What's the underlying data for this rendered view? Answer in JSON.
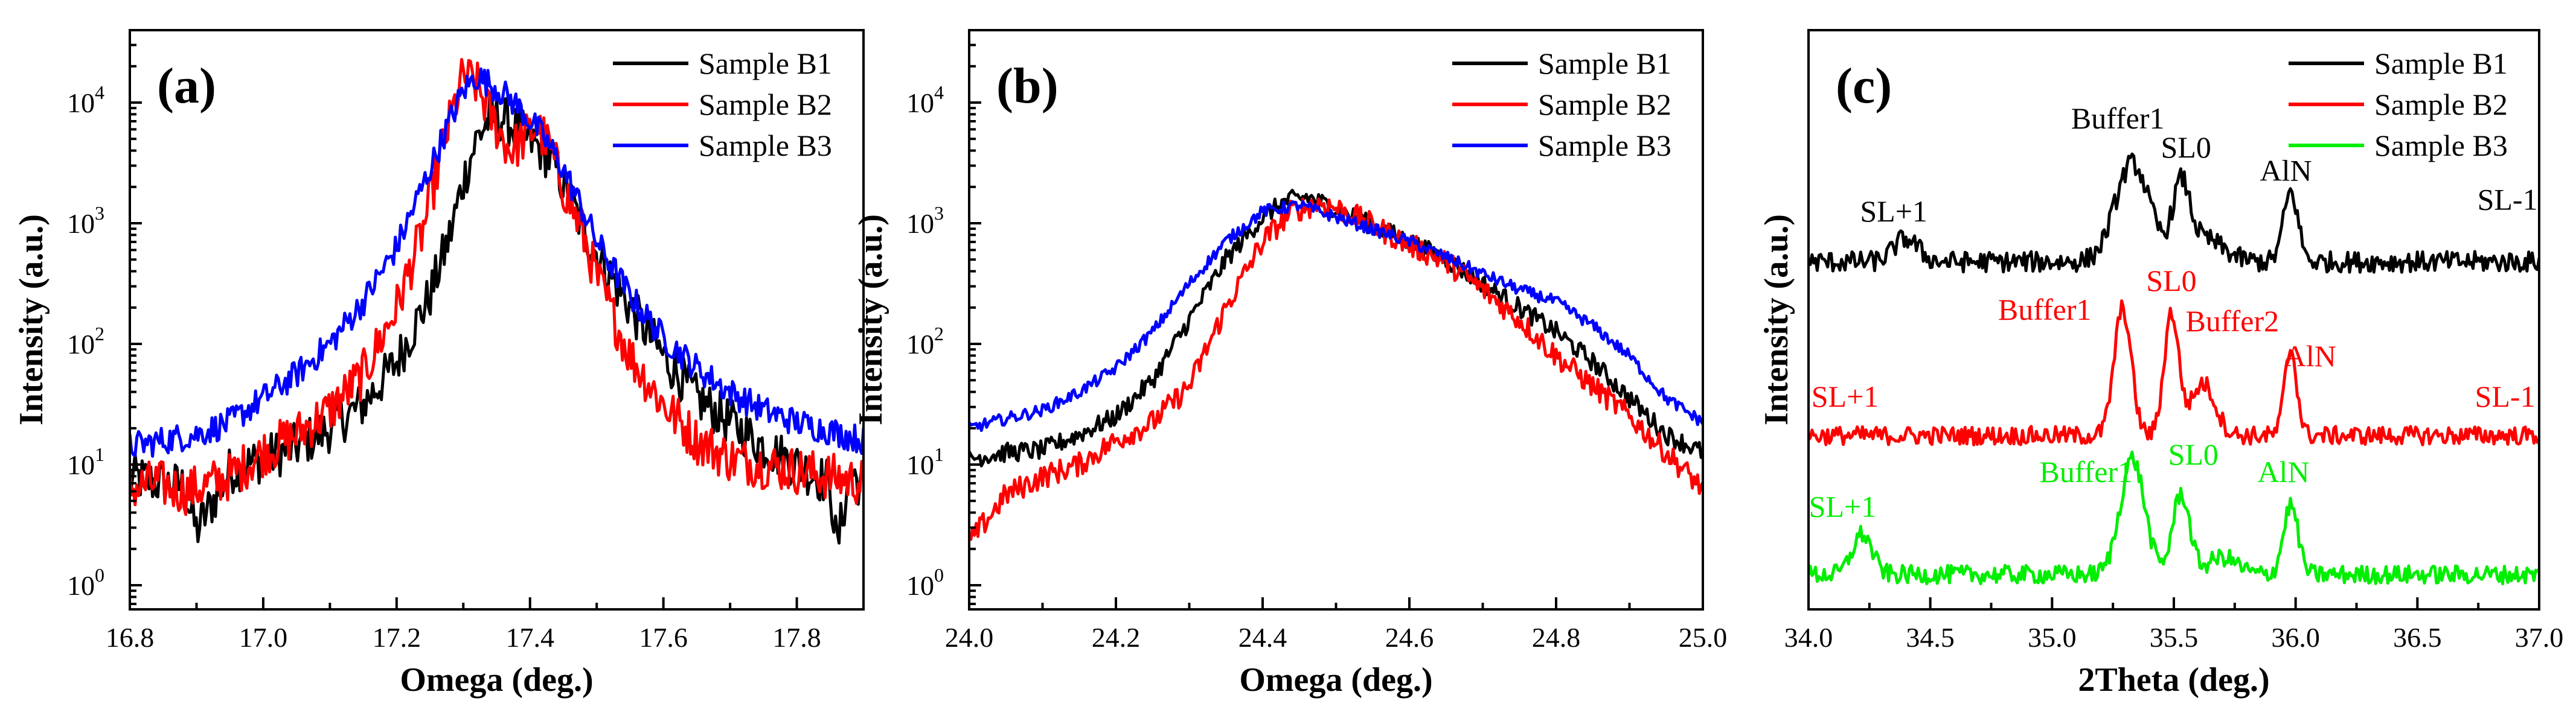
{
  "chart_data": [
    {
      "type": "line",
      "panel_label": "(a)",
      "xlabel": "Omega (deg.)",
      "ylabel": "Intensity (a.u.)",
      "xlim": [
        16.8,
        17.9
      ],
      "yscale": "log",
      "ylim_exponent": [
        -0.2,
        4.6
      ],
      "xticks": [
        "16.8",
        "17.0",
        "17.2",
        "17.4",
        "17.6",
        "17.8"
      ],
      "xtick_values": [
        16.8,
        17.0,
        17.2,
        17.4,
        17.6,
        17.8
      ],
      "ytick_exponents": [
        0,
        1,
        2,
        3,
        4
      ],
      "ytick_base": "10",
      "ytick_labels": [
        "0",
        "1",
        "2",
        "3",
        "4"
      ],
      "legend_position": "top-right",
      "series": [
        {
          "name": "Sample B1",
          "color": "#000000",
          "noise": 0.2,
          "points": [
            [
              16.8,
              0.9
            ],
            [
              16.84,
              0.85
            ],
            [
              16.88,
              0.82
            ],
            [
              16.9,
              0.45
            ],
            [
              16.95,
              0.95
            ],
            [
              17.0,
              1.05
            ],
            [
              17.05,
              1.15
            ],
            [
              17.1,
              1.3
            ],
            [
              17.15,
              1.5
            ],
            [
              17.2,
              1.85
            ],
            [
              17.25,
              2.4
            ],
            [
              17.28,
              2.9
            ],
            [
              17.3,
              3.35
            ],
            [
              17.32,
              3.7
            ],
            [
              17.34,
              3.88
            ],
            [
              17.36,
              3.87
            ],
            [
              17.38,
              3.78
            ],
            [
              17.4,
              3.68
            ],
            [
              17.42,
              3.6
            ],
            [
              17.44,
              3.45
            ],
            [
              17.46,
              3.2
            ],
            [
              17.48,
              2.95
            ],
            [
              17.5,
              2.75
            ],
            [
              17.55,
              2.3
            ],
            [
              17.6,
              1.9
            ],
            [
              17.65,
              1.55
            ],
            [
              17.7,
              1.35
            ],
            [
              17.75,
              1.15
            ],
            [
              17.8,
              1.0
            ],
            [
              17.83,
              0.9
            ],
            [
              17.85,
              0.85
            ],
            [
              17.86,
              0.3
            ],
            [
              17.88,
              0.95
            ],
            [
              17.9,
              0.8
            ]
          ]
        },
        {
          "name": "Sample B2",
          "color": "#ff0000",
          "noise": 0.2,
          "points": [
            [
              16.8,
              0.8
            ],
            [
              16.84,
              0.85
            ],
            [
              16.88,
              0.78
            ],
            [
              16.9,
              0.8
            ],
            [
              16.95,
              0.9
            ],
            [
              17.0,
              1.1
            ],
            [
              17.05,
              1.25
            ],
            [
              17.1,
              1.45
            ],
            [
              17.15,
              1.75
            ],
            [
              17.2,
              2.3
            ],
            [
              17.24,
              2.95
            ],
            [
              17.27,
              3.65
            ],
            [
              17.3,
              4.22
            ],
            [
              17.32,
              4.15
            ],
            [
              17.34,
              3.9
            ],
            [
              17.37,
              3.6
            ],
            [
              17.39,
              3.7
            ],
            [
              17.41,
              3.8
            ],
            [
              17.43,
              3.62
            ],
            [
              17.45,
              3.3
            ],
            [
              17.48,
              2.9
            ],
            [
              17.5,
              2.55
            ],
            [
              17.55,
              1.9
            ],
            [
              17.6,
              1.5
            ],
            [
              17.65,
              1.2
            ],
            [
              17.7,
              1.05
            ],
            [
              17.75,
              1.0
            ],
            [
              17.8,
              0.95
            ],
            [
              17.85,
              0.9
            ],
            [
              17.9,
              0.85
            ]
          ]
        },
        {
          "name": "Sample B3",
          "color": "#0000ff",
          "noise": 0.12,
          "points": [
            [
              16.8,
              1.15
            ],
            [
              16.85,
              1.2
            ],
            [
              16.9,
              1.25
            ],
            [
              16.95,
              1.35
            ],
            [
              17.0,
              1.55
            ],
            [
              17.05,
              1.75
            ],
            [
              17.1,
              2.0
            ],
            [
              17.15,
              2.35
            ],
            [
              17.2,
              2.8
            ],
            [
              17.25,
              3.45
            ],
            [
              17.28,
              3.85
            ],
            [
              17.3,
              4.1
            ],
            [
              17.32,
              4.22
            ],
            [
              17.35,
              4.12
            ],
            [
              17.38,
              3.98
            ],
            [
              17.4,
              3.85
            ],
            [
              17.42,
              3.72
            ],
            [
              17.45,
              3.45
            ],
            [
              17.48,
              3.1
            ],
            [
              17.5,
              2.85
            ],
            [
              17.55,
              2.4
            ],
            [
              17.6,
              2.05
            ],
            [
              17.65,
              1.8
            ],
            [
              17.7,
              1.6
            ],
            [
              17.75,
              1.45
            ],
            [
              17.8,
              1.35
            ],
            [
              17.85,
              1.28
            ],
            [
              17.9,
              1.2
            ]
          ]
        }
      ]
    },
    {
      "type": "line",
      "panel_label": "(b)",
      "xlabel": "Omega (deg.)",
      "ylabel": "Intensity (a.u.)",
      "xlim": [
        24.0,
        25.0
      ],
      "yscale": "log",
      "ylim_exponent": [
        -0.2,
        4.6
      ],
      "xticks": [
        "24.0",
        "24.2",
        "24.4",
        "24.6",
        "24.8",
        "25.0"
      ],
      "xtick_values": [
        24.0,
        24.2,
        24.4,
        24.6,
        24.8,
        25.0
      ],
      "ytick_exponents": [
        0,
        1,
        2,
        3,
        4
      ],
      "ytick_base": "10",
      "ytick_labels": [
        "0",
        "1",
        "2",
        "3",
        "4"
      ],
      "legend_position": "top-right",
      "series": [
        {
          "name": "Sample B1",
          "color": "#000000",
          "noise": 0.08,
          "points": [
            [
              24.0,
              1.05
            ],
            [
              24.05,
              1.1
            ],
            [
              24.1,
              1.12
            ],
            [
              24.15,
              1.25
            ],
            [
              24.2,
              1.4
            ],
            [
              24.25,
              1.7
            ],
            [
              24.3,
              2.2
            ],
            [
              24.35,
              2.7
            ],
            [
              24.4,
              3.05
            ],
            [
              24.43,
              3.18
            ],
            [
              24.46,
              3.22
            ],
            [
              24.5,
              3.12
            ],
            [
              24.55,
              2.98
            ],
            [
              24.6,
              2.85
            ],
            [
              24.65,
              2.7
            ],
            [
              24.7,
              2.5
            ],
            [
              24.75,
              2.3
            ],
            [
              24.8,
              2.1
            ],
            [
              24.85,
              1.85
            ],
            [
              24.9,
              1.55
            ],
            [
              24.95,
              1.25
            ],
            [
              25.0,
              1.1
            ]
          ]
        },
        {
          "name": "Sample B2",
          "color": "#ff0000",
          "noise": 0.1,
          "points": [
            [
              24.0,
              0.35
            ],
            [
              24.05,
              0.75
            ],
            [
              24.1,
              0.9
            ],
            [
              24.15,
              1.0
            ],
            [
              24.2,
              1.2
            ],
            [
              24.25,
              1.35
            ],
            [
              24.3,
              1.65
            ],
            [
              24.35,
              2.3
            ],
            [
              24.4,
              2.85
            ],
            [
              24.44,
              3.1
            ],
            [
              24.48,
              3.17
            ],
            [
              24.52,
              3.08
            ],
            [
              24.56,
              2.95
            ],
            [
              24.6,
              2.82
            ],
            [
              24.65,
              2.68
            ],
            [
              24.7,
              2.45
            ],
            [
              24.75,
              2.2
            ],
            [
              24.8,
              1.9
            ],
            [
              24.85,
              1.65
            ],
            [
              24.9,
              1.4
            ],
            [
              24.95,
              1.1
            ],
            [
              25.0,
              0.8
            ]
          ]
        },
        {
          "name": "Sample B3",
          "color": "#0000ff",
          "noise": 0.05,
          "points": [
            [
              24.0,
              1.3
            ],
            [
              24.05,
              1.38
            ],
            [
              24.1,
              1.45
            ],
            [
              24.15,
              1.6
            ],
            [
              24.2,
              1.8
            ],
            [
              24.25,
              2.1
            ],
            [
              24.3,
              2.5
            ],
            [
              24.35,
              2.85
            ],
            [
              24.4,
              3.1
            ],
            [
              24.45,
              3.15
            ],
            [
              24.5,
              3.05
            ],
            [
              24.55,
              2.95
            ],
            [
              24.6,
              2.85
            ],
            [
              24.65,
              2.72
            ],
            [
              24.7,
              2.58
            ],
            [
              24.75,
              2.45
            ],
            [
              24.8,
              2.35
            ],
            [
              24.85,
              2.15
            ],
            [
              24.9,
              1.9
            ],
            [
              24.95,
              1.55
            ],
            [
              25.0,
              1.35
            ]
          ]
        }
      ]
    },
    {
      "type": "line",
      "panel_label": "(c)",
      "xlabel": "2Theta (deg.)",
      "ylabel": "Intensity (a.u.)",
      "xlim": [
        34.0,
        37.0
      ],
      "ylim": [
        0,
        100
      ],
      "yticks_shown": false,
      "xticks": [
        "34.0",
        "34.5",
        "35.0",
        "35.5",
        "36.0",
        "36.5",
        "37.0"
      ],
      "xtick_values": [
        34.0,
        34.5,
        35.0,
        35.5,
        36.0,
        36.5,
        37.0
      ],
      "legend_position": "top-right",
      "series": [
        {
          "name": "Sample B1",
          "color": "#000000",
          "baseline": 60,
          "noise": 1.8,
          "peaks": [
            [
              34.4,
              4,
              0.05
            ],
            [
              35.33,
              17,
              0.07
            ],
            [
              35.53,
              12,
              0.035
            ],
            [
              35.98,
              12,
              0.03
            ],
            [
              35.62,
              4,
              0.08
            ]
          ]
        },
        {
          "name": "Sample B2",
          "color": "#ff0000",
          "baseline": 30,
          "noise": 1.6,
          "peaks": [
            [
              35.29,
              22,
              0.035
            ],
            [
              35.49,
              21,
              0.03
            ],
            [
              35.62,
              9,
              0.05
            ],
            [
              35.98,
              15,
              0.025
            ]
          ]
        },
        {
          "name": "Sample B3",
          "color": "#00ee00",
          "baseline": 6,
          "noise": 1.6,
          "peaks": [
            [
              34.22,
              7,
              0.04
            ],
            [
              35.33,
              20,
              0.05
            ],
            [
              35.53,
              14,
              0.035
            ],
            [
              35.98,
              12,
              0.03
            ],
            [
              35.7,
              3,
              0.06
            ]
          ]
        }
      ],
      "annotations": [
        {
          "text": "Buffer1",
          "color": "#000000",
          "x": 35.27,
          "y": 83
        },
        {
          "text": "SL0",
          "color": "#000000",
          "x": 35.55,
          "y": 78
        },
        {
          "text": "AlN",
          "color": "#000000",
          "x": 35.96,
          "y": 74
        },
        {
          "text": "SL+1",
          "color": "#000000",
          "x": 34.35,
          "y": 67
        },
        {
          "text": "SL-1",
          "color": "#000000",
          "x": 36.87,
          "y": 69
        },
        {
          "text": "SL0",
          "color": "#ff0000",
          "x": 35.49,
          "y": 55
        },
        {
          "text": "Buffer1",
          "color": "#ff0000",
          "x": 34.97,
          "y": 50
        },
        {
          "text": "Buffer2",
          "color": "#ff0000",
          "x": 35.74,
          "y": 48
        },
        {
          "text": "AlN",
          "color": "#ff0000",
          "x": 36.06,
          "y": 42
        },
        {
          "text": "SL+1",
          "color": "#ff0000",
          "x": 34.15,
          "y": 35
        },
        {
          "text": "SL-1",
          "color": "#ff0000",
          "x": 36.86,
          "y": 35
        },
        {
          "text": "SL0",
          "color": "#00ee00",
          "x": 35.58,
          "y": 25
        },
        {
          "text": "Buffer1",
          "color": "#00ee00",
          "x": 35.14,
          "y": 22
        },
        {
          "text": "AlN",
          "color": "#00ee00",
          "x": 35.95,
          "y": 22
        },
        {
          "text": "SL+1",
          "color": "#00ee00",
          "x": 34.14,
          "y": 16
        }
      ]
    }
  ]
}
